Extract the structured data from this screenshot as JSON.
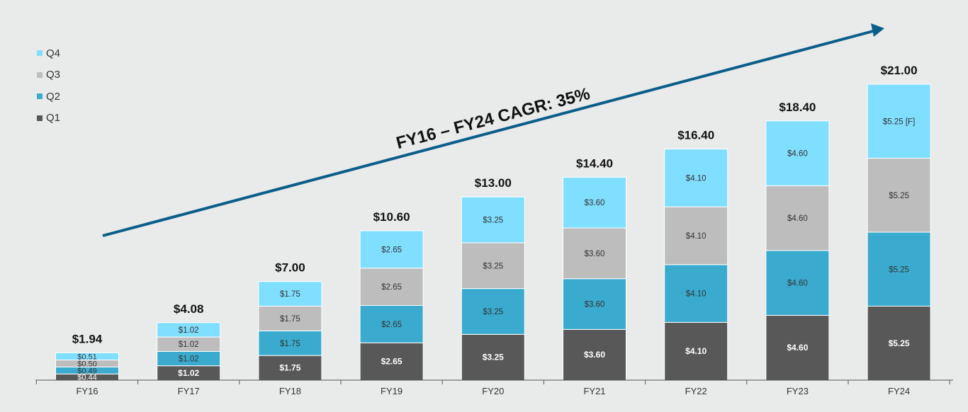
{
  "chart_data": {
    "type": "stacked-bar",
    "title": "",
    "categories": [
      "FY16",
      "FY17",
      "FY18",
      "FY19",
      "FY20",
      "FY21",
      "FY22",
      "FY23",
      "FY24"
    ],
    "series": [
      {
        "name": "Q1",
        "color": "#585858",
        "values": [
          0.44,
          1.02,
          1.75,
          2.65,
          3.25,
          3.6,
          4.1,
          4.6,
          5.25
        ],
        "labels": [
          "$0.44",
          "$1.02",
          "$1.75",
          "$2.65",
          "$3.25",
          "$3.60",
          "$4.10",
          "$4.60",
          "$5.25"
        ]
      },
      {
        "name": "Q2",
        "color": "#3aabcf",
        "values": [
          0.49,
          1.02,
          1.75,
          2.65,
          3.25,
          3.6,
          4.1,
          4.6,
          5.25
        ],
        "labels": [
          "$0.49",
          "$1.02",
          "$1.75",
          "$2.65",
          "$3.25",
          "$3.60",
          "$4.10",
          "$4.60",
          "$5.25"
        ]
      },
      {
        "name": "Q3",
        "color": "#bdbdbd",
        "values": [
          0.5,
          1.02,
          1.75,
          2.65,
          3.25,
          3.6,
          4.1,
          4.6,
          5.25
        ],
        "labels": [
          "$0.50",
          "$1.02",
          "$1.75",
          "$2.65",
          "$3.25",
          "$3.60",
          "$4.10",
          "$4.60",
          "$5.25"
        ]
      },
      {
        "name": "Q4",
        "color": "#80deff",
        "values": [
          0.51,
          1.02,
          1.75,
          2.65,
          3.25,
          3.6,
          4.1,
          4.6,
          5.25
        ],
        "labels": [
          "$0.51",
          "$1.02",
          "$1.75",
          "$2.65",
          "$3.25",
          "$3.60",
          "$4.10",
          "$4.60",
          "$5.25 [F]"
        ]
      }
    ],
    "totals": [
      1.94,
      4.08,
      7.0,
      10.6,
      13.0,
      14.4,
      16.4,
      18.4,
      21.0
    ],
    "total_labels": [
      "$1.94",
      "$4.08",
      "$7.00",
      "$10.60",
      "$13.00",
      "$14.40",
      "$16.40",
      "$18.40",
      "$21.00"
    ],
    "ylim": [
      0,
      21
    ],
    "legend_position": "top-left",
    "legend_order": [
      "Q4",
      "Q3",
      "Q2",
      "Q1"
    ],
    "annotation": "FY16 – FY24 CAGR: 35%",
    "arrow_color": "#0b5e8a",
    "axis_color": "#555555"
  }
}
